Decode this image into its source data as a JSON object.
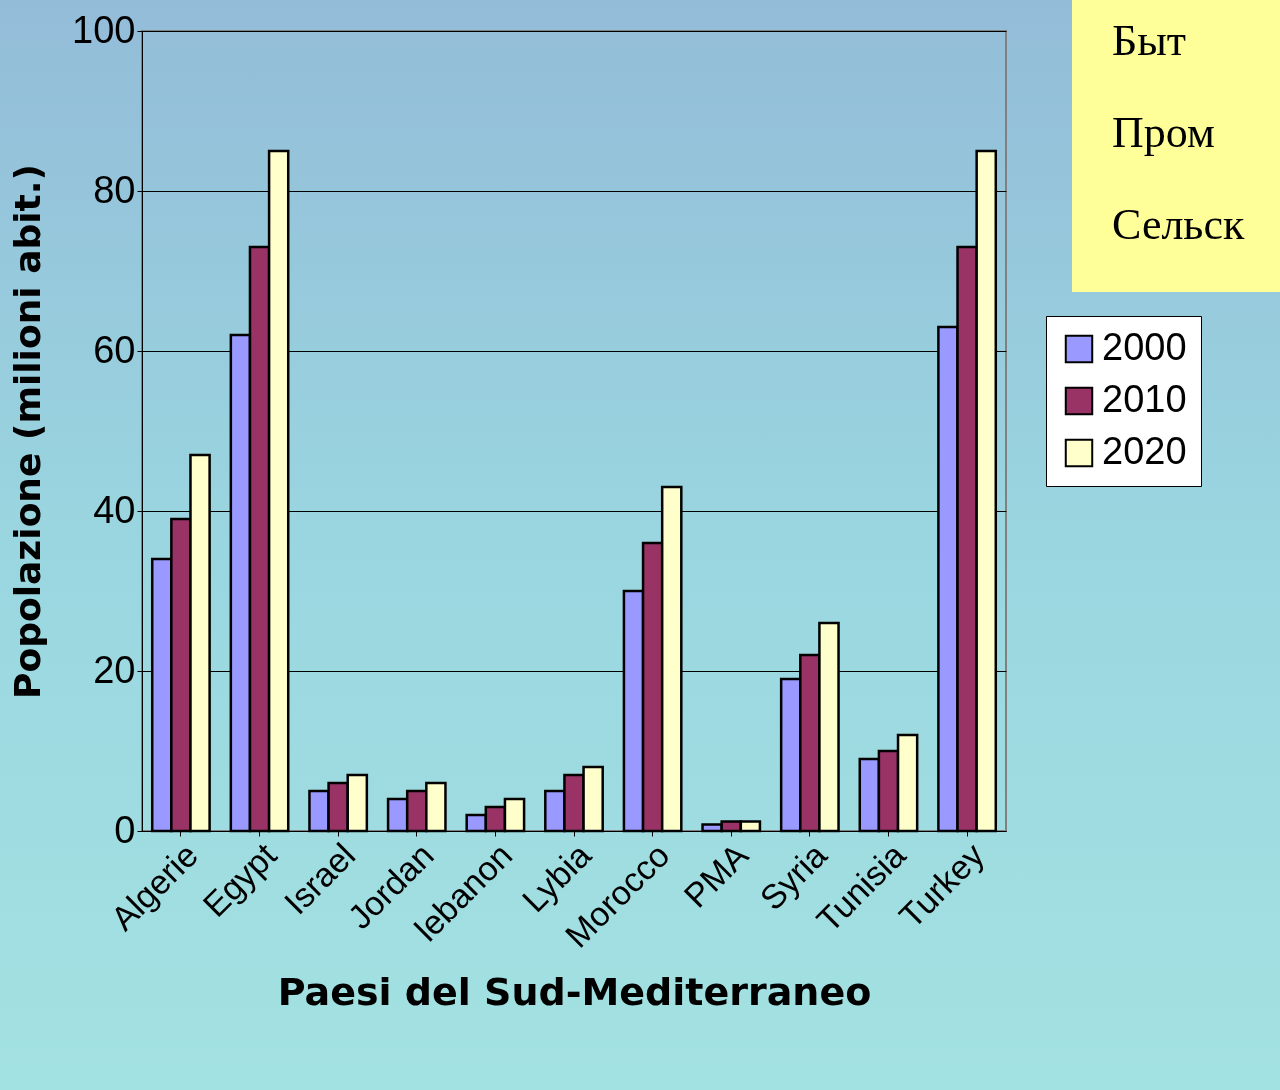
{
  "chart_data": {
    "type": "bar",
    "xlabel": "Paesi del Sud-Mediterraneo",
    "ylabel": "Popolazione (milioni abit.)",
    "categories": [
      "Algerie",
      "Egypt",
      "Israel",
      "Jordan",
      "lebanon",
      "Lybia",
      "Morocco",
      "PMA",
      "Syria",
      "Tunisia",
      "Turkey"
    ],
    "series": [
      {
        "name": "2000",
        "color": "#9999ff",
        "values": [
          34,
          62,
          5,
          4,
          2,
          5,
          30,
          0.8,
          19,
          9,
          63
        ]
      },
      {
        "name": "2010",
        "color": "#993366",
        "values": [
          39,
          73,
          6,
          5,
          3,
          7,
          36,
          1.2,
          22,
          10,
          73
        ]
      },
      {
        "name": "2020",
        "color": "#ffffcc",
        "values": [
          47,
          85,
          7,
          6,
          4,
          8,
          43,
          1.2,
          26,
          12,
          85
        ]
      }
    ],
    "ylim": [
      0,
      100
    ],
    "yticks": [
      0,
      20,
      40,
      60,
      80,
      100
    ],
    "grid": "y",
    "legend": "right",
    "annotations": [
      "Быт",
      "Пром",
      "Сельск"
    ]
  }
}
